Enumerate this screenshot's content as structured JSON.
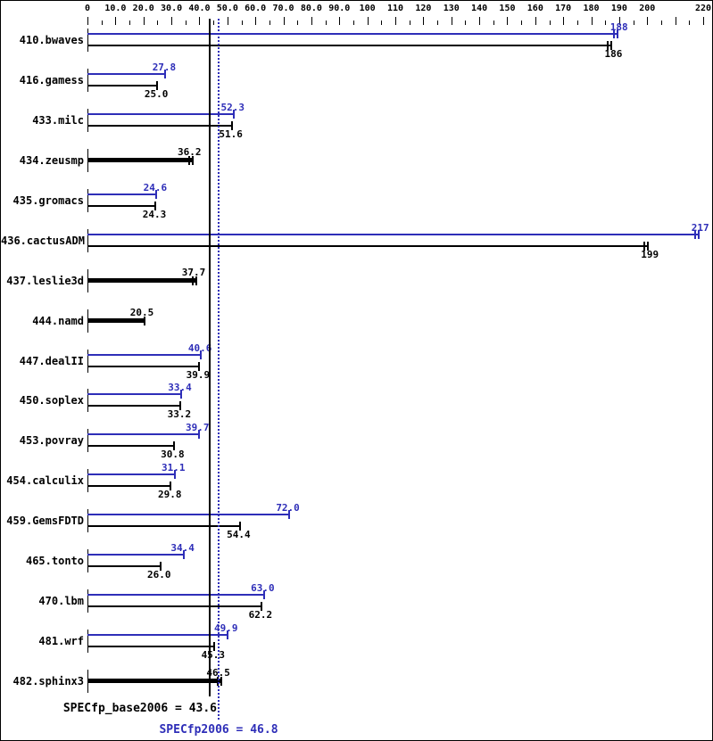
{
  "colors": {
    "peak": "#2e2eb8",
    "base": "#000000",
    "background": "#ffffff"
  },
  "axis": {
    "max": 220,
    "minor_step": 5,
    "major_step": 10,
    "tick_labels": [
      "0",
      "10.0",
      "20.0",
      "30.0",
      "40.0",
      "50.0",
      "60.0",
      "70.0",
      "80.0",
      "90.0",
      "100",
      "110",
      "120",
      "130",
      "140",
      "150",
      "160",
      "170",
      "180",
      "190",
      "200",
      "220"
    ]
  },
  "summary": {
    "base_text": "SPECfp_base2006 = 43.6",
    "peak_text": "SPECfp2006 = 46.8",
    "base_value": 43.6,
    "peak_value": 46.8
  },
  "benchmarks": [
    {
      "name": "410.bwaves",
      "peak": 188,
      "base": 186,
      "peak_text": "188",
      "base_text": "186",
      "single": false,
      "err": true
    },
    {
      "name": "416.gamess",
      "peak": 27.8,
      "base": 25.0,
      "peak_text": "27.8",
      "base_text": "25.0",
      "single": false,
      "err": false
    },
    {
      "name": "433.milc",
      "peak": 52.3,
      "base": 51.6,
      "peak_text": "52.3",
      "base_text": "51.6",
      "single": false,
      "err": false
    },
    {
      "name": "434.zeusmp",
      "peak": 36.2,
      "base": 36.2,
      "peak_text": "36.2",
      "base_text": "36.2",
      "single": true,
      "err": true
    },
    {
      "name": "435.gromacs",
      "peak": 24.6,
      "base": 24.3,
      "peak_text": "24.6",
      "base_text": "24.3",
      "single": false,
      "err": false
    },
    {
      "name": "436.cactusADM",
      "peak": 217,
      "base": 199,
      "peak_text": "217",
      "base_text": "199",
      "single": false,
      "err": true
    },
    {
      "name": "437.leslie3d",
      "peak": 37.7,
      "base": 37.7,
      "peak_text": "37.7",
      "base_text": "37.7",
      "single": true,
      "err": true
    },
    {
      "name": "444.namd",
      "peak": 20.5,
      "base": 20.5,
      "peak_text": "20.5",
      "base_text": "20.5",
      "single": true,
      "err": false
    },
    {
      "name": "447.dealII",
      "peak": 40.6,
      "base": 39.9,
      "peak_text": "40.6",
      "base_text": "39.9",
      "single": false,
      "err": false
    },
    {
      "name": "450.soplex",
      "peak": 33.4,
      "base": 33.2,
      "peak_text": "33.4",
      "base_text": "33.2",
      "single": false,
      "err": false
    },
    {
      "name": "453.povray",
      "peak": 39.7,
      "base": 30.8,
      "peak_text": "39.7",
      "base_text": "30.8",
      "single": false,
      "err": false
    },
    {
      "name": "454.calculix",
      "peak": 31.1,
      "base": 29.8,
      "peak_text": "31.1",
      "base_text": "29.8",
      "single": false,
      "err": false
    },
    {
      "name": "459.GemsFDTD",
      "peak": 72.0,
      "base": 54.4,
      "peak_text": "72.0",
      "base_text": "54.4",
      "single": false,
      "err": false
    },
    {
      "name": "465.tonto",
      "peak": 34.4,
      "base": 26.0,
      "peak_text": "34.4",
      "base_text": "26.0",
      "single": false,
      "err": false
    },
    {
      "name": "470.lbm",
      "peak": 63.0,
      "base": 62.2,
      "peak_text": "63.0",
      "base_text": "62.2",
      "single": false,
      "err": false
    },
    {
      "name": "481.wrf",
      "peak": 49.9,
      "base": 45.3,
      "peak_text": "49.9",
      "base_text": "45.3",
      "single": false,
      "err": false
    },
    {
      "name": "482.sphinx3",
      "peak": 46.5,
      "base": 46.5,
      "peak_text": "46.5",
      "base_text": "46.5",
      "single": true,
      "err": true
    }
  ],
  "chart_data": {
    "type": "bar",
    "orientation": "horizontal",
    "title": "",
    "xlabel": "",
    "ylabel": "",
    "xlim": [
      0,
      220
    ],
    "grid": false,
    "legend_position": "none",
    "categories": [
      "410.bwaves",
      "416.gamess",
      "433.milc",
      "434.zeusmp",
      "435.gromacs",
      "436.cactusADM",
      "437.leslie3d",
      "444.namd",
      "447.dealII",
      "450.soplex",
      "453.povray",
      "454.calculix",
      "459.GemsFDTD",
      "465.tonto",
      "470.lbm",
      "481.wrf",
      "482.sphinx3"
    ],
    "series": [
      {
        "name": "SPECfp2006 (peak)",
        "color": "#2e2eb8",
        "values": [
          188,
          27.8,
          52.3,
          36.2,
          24.6,
          217,
          37.7,
          20.5,
          40.6,
          33.4,
          39.7,
          31.1,
          72.0,
          34.4,
          63.0,
          49.9,
          46.5
        ]
      },
      {
        "name": "SPECfp_base2006 (base)",
        "color": "#000000",
        "values": [
          186,
          25.0,
          51.6,
          36.2,
          24.3,
          199,
          37.7,
          20.5,
          39.9,
          33.2,
          30.8,
          29.8,
          54.4,
          26.0,
          62.2,
          45.3,
          46.5
        ]
      }
    ],
    "reference_lines": [
      {
        "label": "SPECfp_base2006 = 43.6",
        "value": 43.6,
        "style": "solid",
        "color": "#000000"
      },
      {
        "label": "SPECfp2006 = 46.8",
        "value": 46.8,
        "style": "dotted",
        "color": "#2e2eb8"
      }
    ],
    "annotations": [
      "SPECfp_base2006 = 43.6",
      "SPECfp2006 = 46.8"
    ]
  }
}
